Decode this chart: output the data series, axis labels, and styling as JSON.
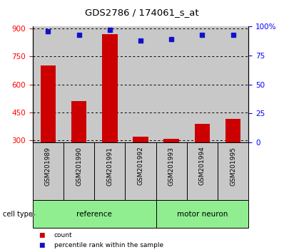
{
  "title": "GDS2786 / 174061_s_at",
  "samples": [
    "GSM201989",
    "GSM201990",
    "GSM201991",
    "GSM201992",
    "GSM201993",
    "GSM201994",
    "GSM201995"
  ],
  "counts": [
    700,
    510,
    870,
    320,
    308,
    390,
    415
  ],
  "percentiles": [
    96,
    93,
    97,
    88,
    89,
    93,
    93
  ],
  "groups": [
    "reference",
    "reference",
    "reference",
    "reference",
    "motor neuron",
    "motor neuron",
    "motor neuron"
  ],
  "bar_color": "#CC0000",
  "dot_color": "#1111CC",
  "col_bg_color": "#C8C8C8",
  "green_color": "#90EE90",
  "ylim_left": [
    290,
    910
  ],
  "yticks_left": [
    300,
    450,
    600,
    750,
    900
  ],
  "ylim_right": [
    0,
    100
  ],
  "yticks_right": [
    0,
    25,
    50,
    75,
    100
  ],
  "ytick_right_labels": [
    "0",
    "25",
    "50",
    "75",
    "100%"
  ],
  "legend_count": "count",
  "legend_percentile": "percentile rank within the sample",
  "cell_type_label": "cell type"
}
